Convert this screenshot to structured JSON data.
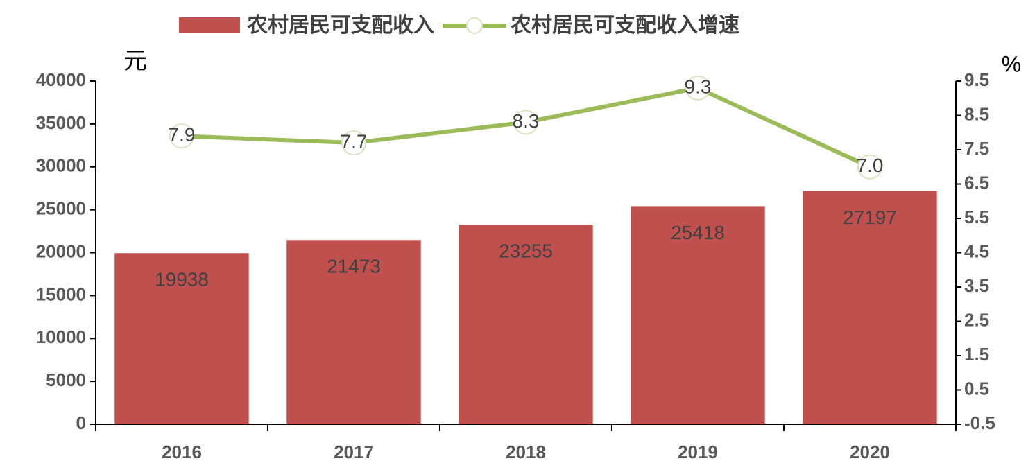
{
  "chart_data": {
    "type": "bar",
    "categories": [
      "2016",
      "2017",
      "2018",
      "2019",
      "2020"
    ],
    "y_unit": "元",
    "y2_unit": "%",
    "series": [
      {
        "name": "农村居民可支配收入",
        "type": "bar",
        "color": "#c0504d",
        "values": [
          19938,
          21473,
          23255,
          25418,
          27197
        ]
      },
      {
        "name": "农村居民可支配收入增速",
        "type": "line",
        "axis": "y2",
        "color": "#9bbb59",
        "values": [
          7.9,
          7.7,
          8.3,
          9.3,
          7.0
        ],
        "value_labels": [
          "7.9",
          "7.7",
          "8.3",
          "9.3",
          "7.0"
        ]
      }
    ],
    "ylim": [
      0,
      40000
    ],
    "yticks": [
      0,
      5000,
      10000,
      15000,
      20000,
      25000,
      30000,
      35000,
      40000
    ],
    "y2lim": [
      -0.5,
      9.5
    ],
    "y2ticks": [
      -0.5,
      0.5,
      1.5,
      2.5,
      3.5,
      4.5,
      5.5,
      6.5,
      7.5,
      8.5,
      9.5
    ],
    "legend": "top"
  }
}
